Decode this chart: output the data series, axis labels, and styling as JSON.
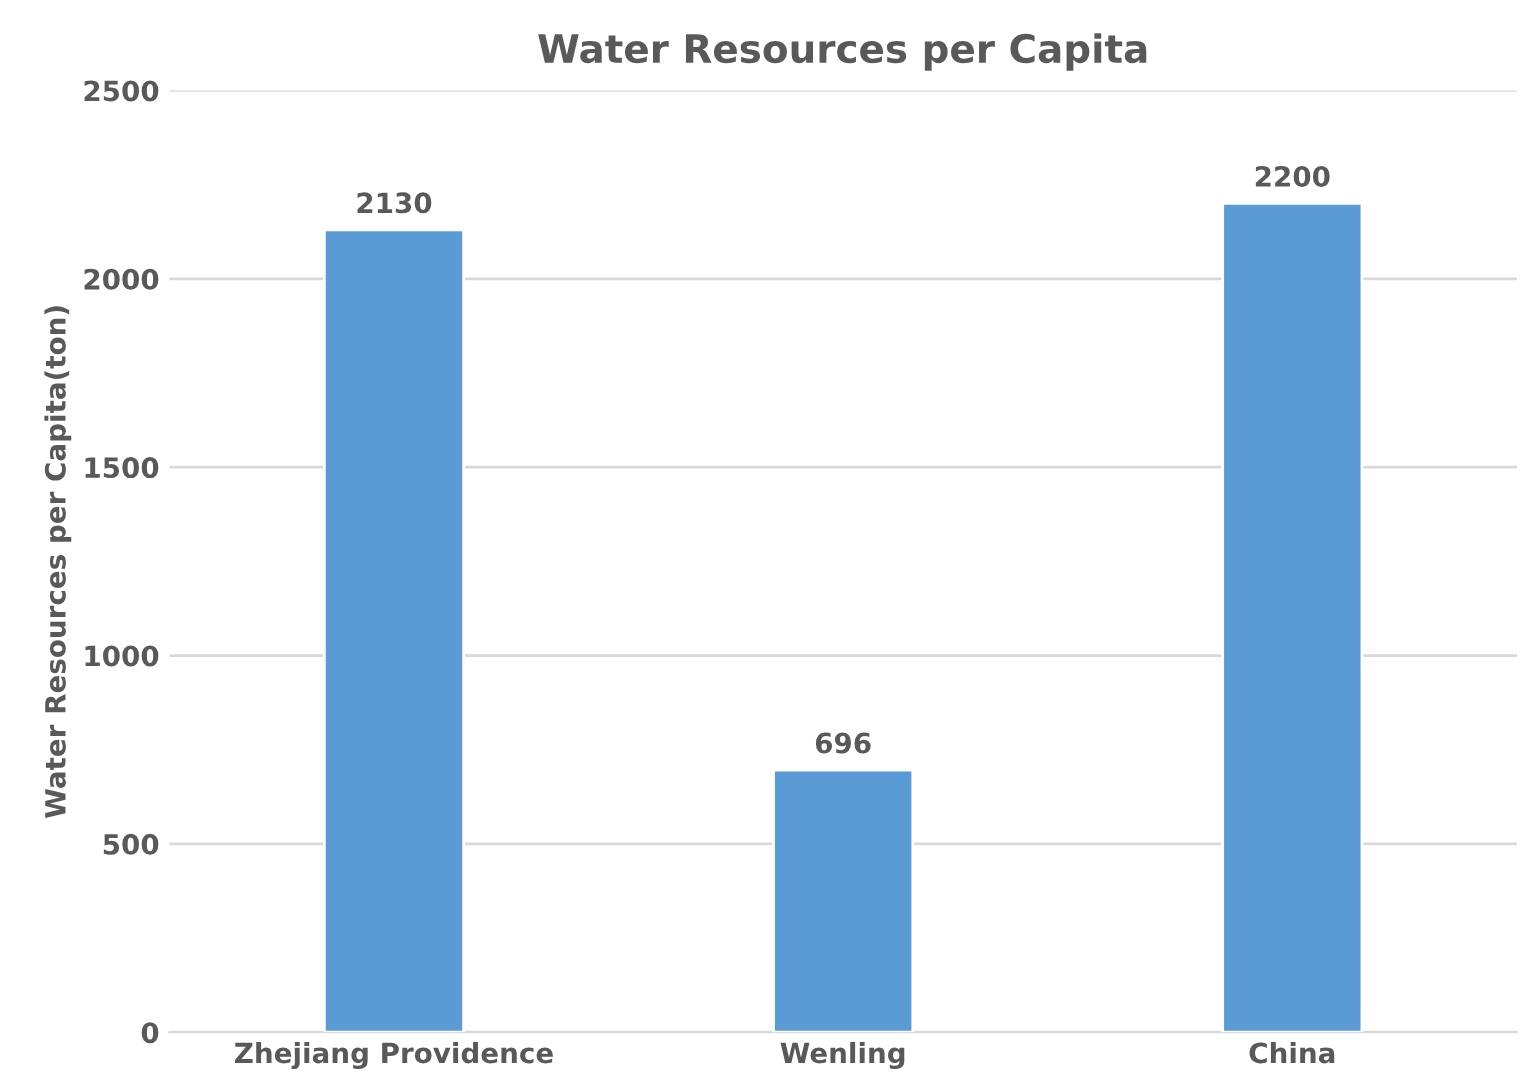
{
  "chart_data": {
    "type": "bar",
    "title": "Water Resources per Capita",
    "ylabel": "Water Resources per Capita(ton)",
    "categories": [
      "Zhejiang Providence",
      "Wenling",
      "China"
    ],
    "values": [
      2130,
      696,
      2200
    ],
    "color": "#5b9bd5",
    "ylim": [
      0,
      2500
    ],
    "yticks": [
      0,
      500,
      1000,
      1500,
      2000,
      2500
    ],
    "grid": "y",
    "data_labels": true
  }
}
